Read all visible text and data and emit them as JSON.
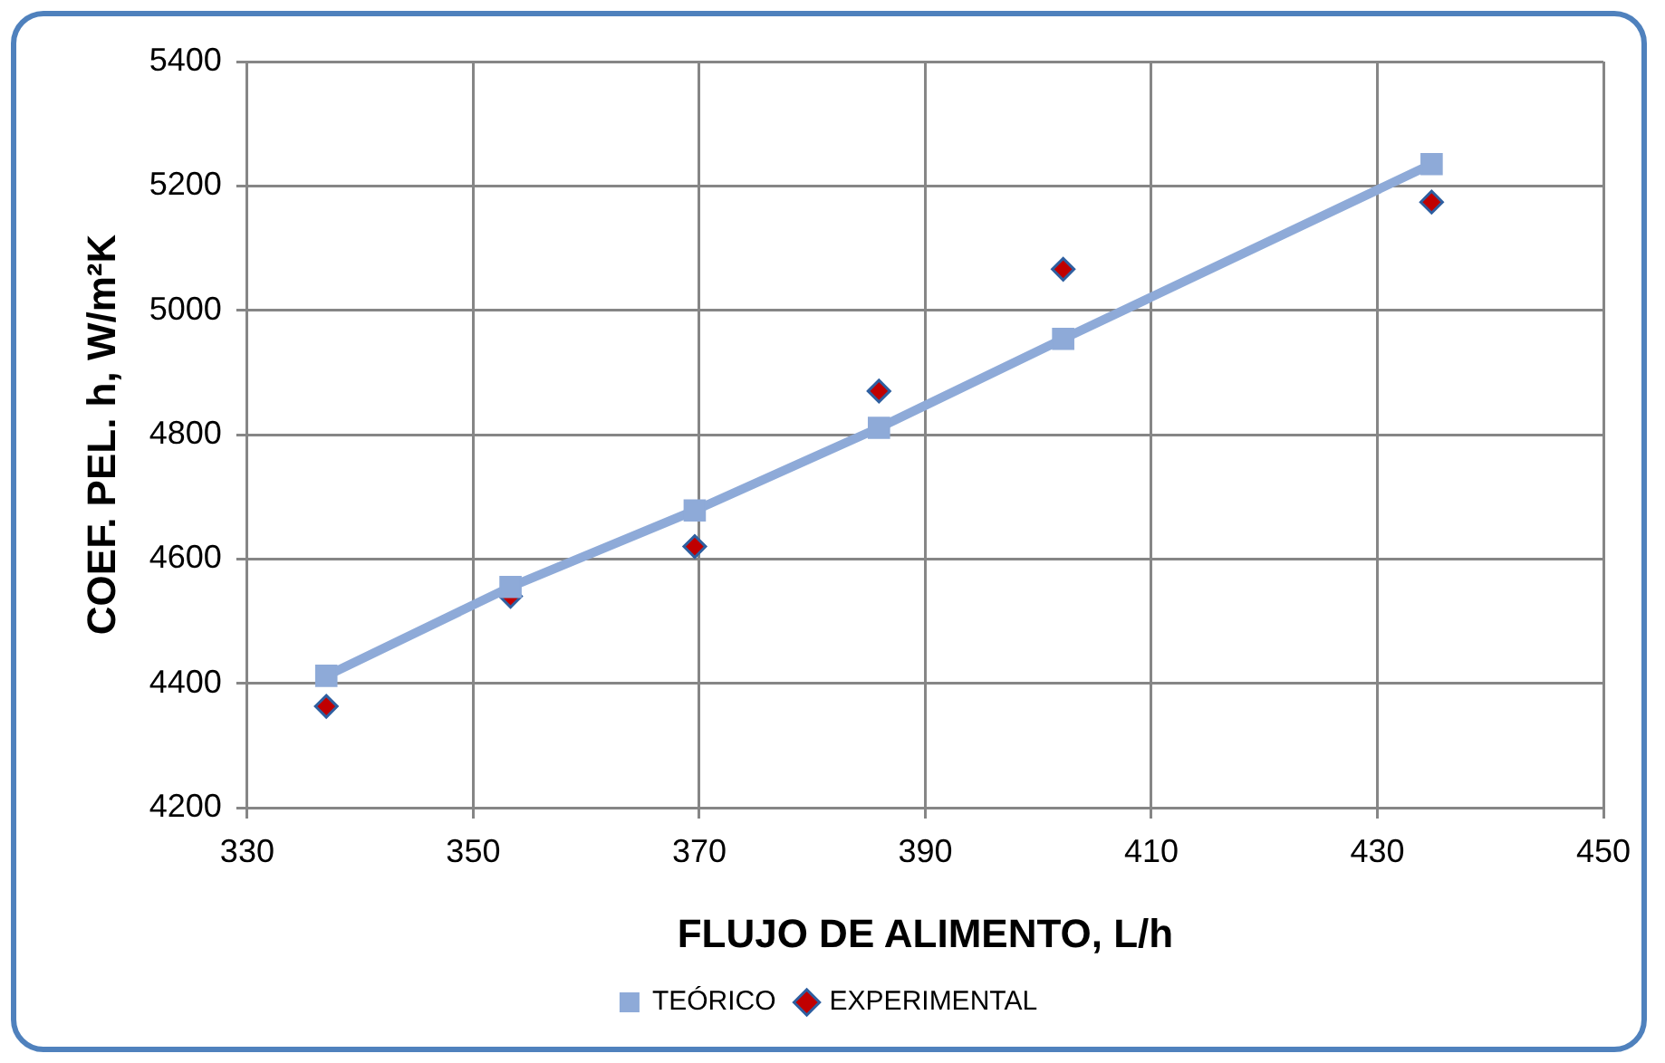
{
  "chart_data": {
    "type": "scatter",
    "xlabel": "FLUJO DE ALIMENTO, L/h",
    "ylabel": "COEF. PEL. h, W/m²K",
    "xlim": [
      330,
      450
    ],
    "xticks": [
      330,
      350,
      370,
      390,
      410,
      430,
      450
    ],
    "ylim": [
      4200,
      5400
    ],
    "yticks": [
      4200,
      4400,
      4600,
      4800,
      5000,
      5200,
      5400
    ],
    "grid": true,
    "legend": "bottom",
    "series": [
      {
        "name": "EXPERIMENTAL",
        "type": "scatter",
        "marker": "diamond",
        "color": "#c00000",
        "x": [
          337,
          353.3,
          369.6,
          385.9,
          402.2,
          434.8
        ],
        "values": [
          4363,
          4540,
          4620,
          4870,
          5066,
          5174
        ]
      },
      {
        "name": "TEÓRICO",
        "type": "line",
        "marker": "square",
        "line_style": "solid",
        "color": "#8eaad8",
        "x": [
          337,
          353.3,
          369.6,
          385.9,
          402.2,
          434.8
        ],
        "values": [
          4412,
          4555,
          4678,
          4811,
          4954,
          5235
        ]
      }
    ]
  }
}
